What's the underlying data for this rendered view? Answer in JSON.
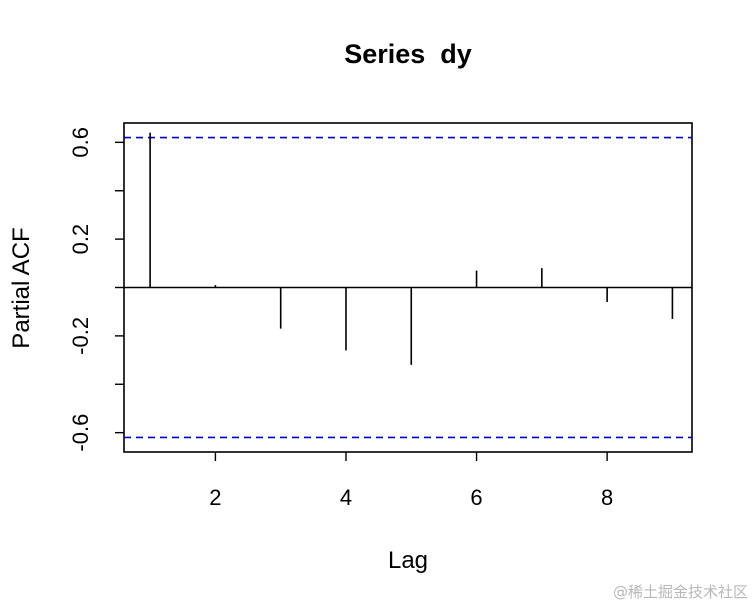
{
  "chart_data": {
    "type": "bar",
    "title": "Series  dy",
    "xlabel": "Lag",
    "ylabel": "Partial ACF",
    "x": [
      1,
      2,
      3,
      4,
      5,
      6,
      7,
      8,
      9
    ],
    "values": [
      0.64,
      0.01,
      -0.17,
      -0.26,
      -0.32,
      0.07,
      0.08,
      -0.06,
      -0.13
    ],
    "xlim": [
      0.6,
      9.3
    ],
    "ylim": [
      -0.68,
      0.68
    ],
    "x_ticks": [
      2,
      4,
      6,
      8
    ],
    "x_tick_labels": [
      "2",
      "4",
      "6",
      "8"
    ],
    "y_ticks": [
      -0.6,
      -0.4,
      -0.2,
      0.0,
      0.2,
      0.4,
      0.6
    ],
    "y_tick_labels": [
      "-0.6",
      "-0.2",
      "0.2",
      "0.6"
    ],
    "confidence_band": 0.62,
    "colors": {
      "bars": "#000000",
      "confidence_band": "#0000dd",
      "frame": "#000000"
    }
  },
  "watermark": "@稀土掘金技术社区"
}
